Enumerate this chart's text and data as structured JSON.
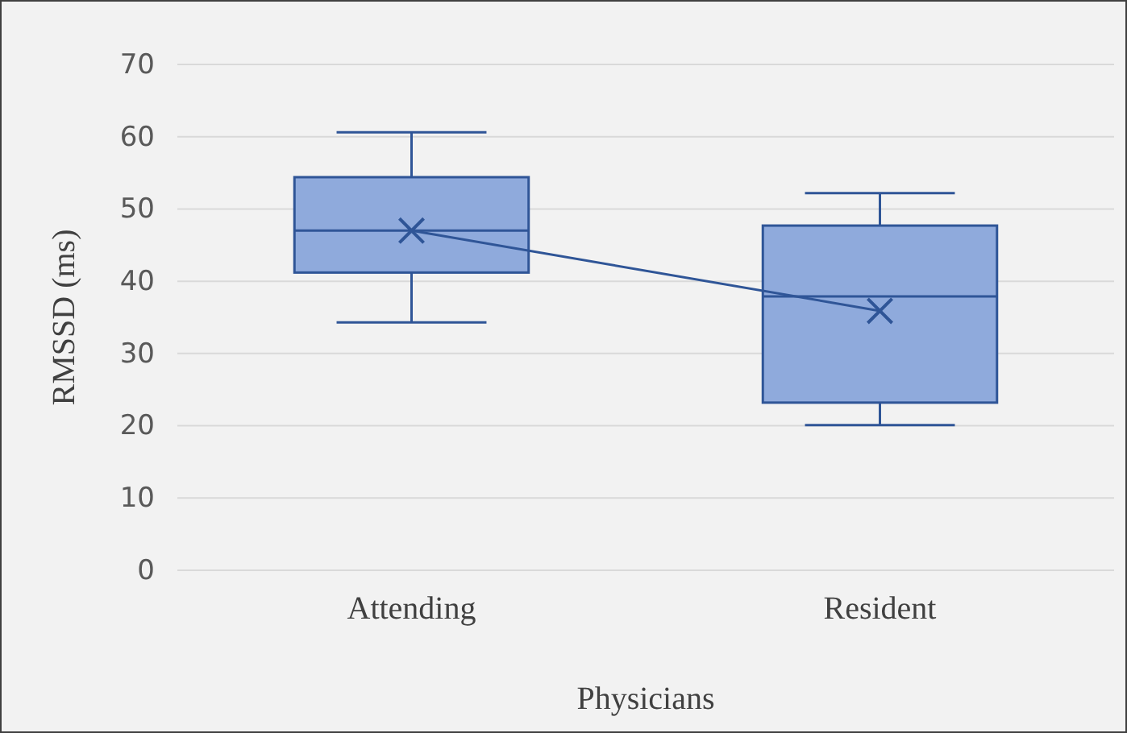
{
  "chart_data": {
    "type": "box",
    "xlabel": "Physicians",
    "ylabel": "RMSSD (ms)",
    "categories": [
      "Attending",
      "Resident"
    ],
    "ylim": [
      0,
      70
    ],
    "yticks": [
      0,
      10,
      20,
      30,
      40,
      50,
      60,
      70
    ],
    "grid": "y",
    "series": [
      {
        "color": "#8faadc",
        "boxes": [
          {
            "low": 34.3,
            "q1": 41.2,
            "median": 47.0,
            "q3": 54.4,
            "high": 60.6
          },
          {
            "low": 20.1,
            "q1": 23.2,
            "median": 37.9,
            "q3": 47.7,
            "high": 52.2
          }
        ]
      },
      {
        "type": "line",
        "color": "#2f5597",
        "values": [
          47.0,
          35.9
        ],
        "marker": "cross",
        "line_style": "solid"
      }
    ]
  }
}
